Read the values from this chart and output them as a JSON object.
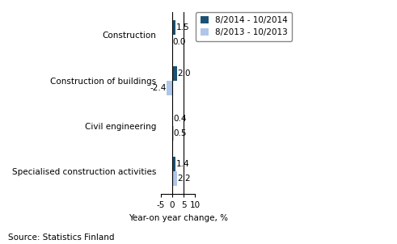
{
  "categories": [
    "Construction",
    "Construction of buildings",
    "Civil engineering",
    "Specialised construction activities"
  ],
  "series1_values": [
    1.5,
    2.0,
    0.4,
    1.4
  ],
  "series2_values": [
    0.0,
    -2.4,
    0.5,
    2.2
  ],
  "series1_label": "8/2014 - 10/2014",
  "series2_label": "8/2013 - 10/2013",
  "series1_color": "#1a5276",
  "series2_color": "#aec6e8",
  "xlabel": "Year-on year change, %",
  "xlim": [
    -5,
    10
  ],
  "xticks": [
    -5,
    0,
    5,
    10
  ],
  "source": "Source: Statistics Finland",
  "bar_height": 0.32,
  "background_color": "#ffffff",
  "annotation_fontsize": 7.5,
  "label_fontsize": 7.5,
  "legend_fontsize": 7.5,
  "source_fontsize": 7.5
}
